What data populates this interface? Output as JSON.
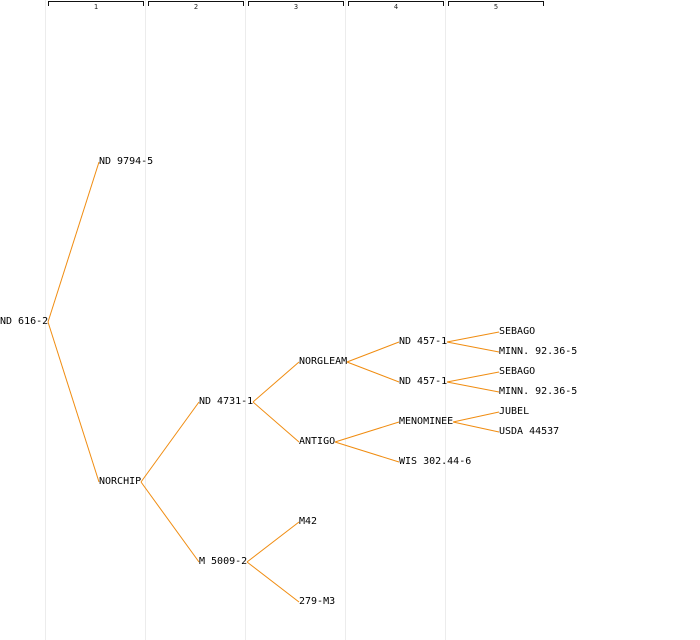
{
  "colors": {
    "edge": "#f08c10",
    "gridline": "#ececec",
    "text": "#000000"
  },
  "generations": [
    {
      "label": "1"
    },
    {
      "label": "2"
    },
    {
      "label": "3"
    },
    {
      "label": "4"
    },
    {
      "label": "5"
    }
  ],
  "nodes": [
    {
      "id": "n0",
      "label": "ND 616-2",
      "gen": 0,
      "row": 14,
      "parent": null
    },
    {
      "id": "n1",
      "label": "ND 9794-5",
      "gen": 1,
      "row": 6,
      "parent": "n0"
    },
    {
      "id": "n2",
      "label": "NORCHIP",
      "gen": 1,
      "row": 22,
      "parent": "n0"
    },
    {
      "id": "n3",
      "label": "ND 4731-1",
      "gen": 2,
      "row": 18,
      "parent": "n2"
    },
    {
      "id": "n4",
      "label": "M 5009-2",
      "gen": 2,
      "row": 26,
      "parent": "n2"
    },
    {
      "id": "n5",
      "label": "NORGLEAM",
      "gen": 3,
      "row": 16,
      "parent": "n3"
    },
    {
      "id": "n6",
      "label": "ANTIGO",
      "gen": 3,
      "row": 20,
      "parent": "n3"
    },
    {
      "id": "n7",
      "label": "M42",
      "gen": 3,
      "row": 24,
      "parent": "n4"
    },
    {
      "id": "n8",
      "label": "279-M3",
      "gen": 3,
      "row": 28,
      "parent": "n4"
    },
    {
      "id": "n9",
      "label": "ND 457-1",
      "gen": 4,
      "row": 15,
      "parent": "n5"
    },
    {
      "id": "n10",
      "label": "ND 457-1",
      "gen": 4,
      "row": 17,
      "parent": "n5"
    },
    {
      "id": "n11",
      "label": "MENOMINEE",
      "gen": 4,
      "row": 19,
      "parent": "n6"
    },
    {
      "id": "n12",
      "label": "WIS 302.44-6",
      "gen": 4,
      "row": 21,
      "parent": "n6"
    },
    {
      "id": "n13",
      "label": "SEBAGO",
      "gen": 5,
      "row": 14.5,
      "parent": "n9"
    },
    {
      "id": "n14",
      "label": "MINN. 92.36-5",
      "gen": 5,
      "row": 15.5,
      "parent": "n9"
    },
    {
      "id": "n15",
      "label": "SEBAGO",
      "gen": 5,
      "row": 16.5,
      "parent": "n10"
    },
    {
      "id": "n16",
      "label": "MINN. 92.36-5",
      "gen": 5,
      "row": 17.5,
      "parent": "n10"
    },
    {
      "id": "n17",
      "label": "JUBEL",
      "gen": 5,
      "row": 18.5,
      "parent": "n11"
    },
    {
      "id": "n18",
      "label": "USDA 44537",
      "gen": 5,
      "row": 19.5,
      "parent": "n11"
    }
  ]
}
